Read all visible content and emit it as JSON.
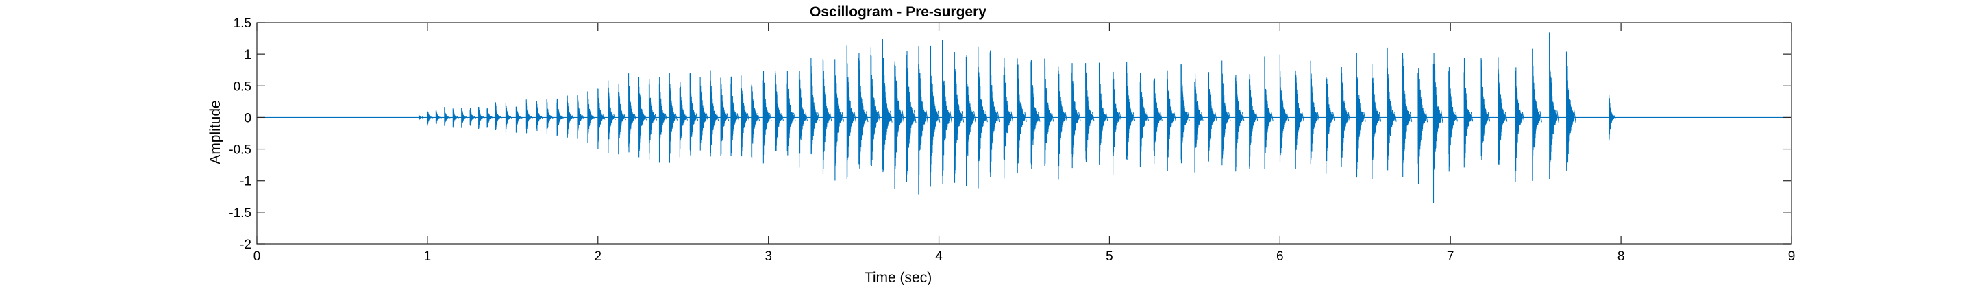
{
  "chart_data": {
    "type": "line",
    "title": "Oscillogram - Pre-surgery",
    "xlabel": "Time (sec)",
    "ylabel": "Amplitude",
    "xlim": [
      0,
      9
    ],
    "ylim": [
      -2,
      1.5
    ],
    "xticks": [
      0,
      1,
      2,
      3,
      4,
      5,
      6,
      7,
      8,
      9
    ],
    "yticks": [
      1.5,
      1,
      0.5,
      0,
      -0.5,
      -1,
      -1.5,
      -2
    ],
    "grid": false,
    "legend": "none",
    "series": [
      {
        "color": "#0072BD",
        "render": "waveform envelope (pulse train)",
        "pulses": [
          {
            "t": 0.95,
            "amp": 0.05
          },
          {
            "t": 1.0,
            "amp": 0.16
          },
          {
            "t": 1.05,
            "amp": 0.16
          },
          {
            "t": 1.1,
            "amp": 0.18
          },
          {
            "t": 1.15,
            "amp": 0.18
          },
          {
            "t": 1.2,
            "amp": 0.2
          },
          {
            "t": 1.25,
            "amp": 0.2
          },
          {
            "t": 1.3,
            "amp": 0.22
          },
          {
            "t": 1.35,
            "amp": 0.24
          },
          {
            "t": 1.4,
            "amp": 0.25
          },
          {
            "t": 1.46,
            "amp": 0.26
          },
          {
            "t": 1.52,
            "amp": 0.28
          },
          {
            "t": 1.58,
            "amp": 0.3
          },
          {
            "t": 1.64,
            "amp": 0.32
          },
          {
            "t": 1.7,
            "amp": 0.34
          },
          {
            "t": 1.76,
            "amp": 0.38
          },
          {
            "t": 1.82,
            "amp": 0.4
          },
          {
            "t": 1.88,
            "amp": 0.42
          },
          {
            "t": 1.94,
            "amp": 0.45
          },
          {
            "t": 2.0,
            "amp": 0.55
          },
          {
            "t": 2.06,
            "amp": 0.62
          },
          {
            "t": 2.12,
            "amp": 0.66
          },
          {
            "t": 2.18,
            "amp": 0.7
          },
          {
            "t": 2.24,
            "amp": 0.72
          },
          {
            "t": 2.3,
            "amp": 0.74
          },
          {
            "t": 2.36,
            "amp": 0.76
          },
          {
            "t": 2.42,
            "amp": 0.76
          },
          {
            "t": 2.48,
            "amp": 0.76
          },
          {
            "t": 2.54,
            "amp": 0.8
          },
          {
            "t": 2.6,
            "amp": 0.8
          },
          {
            "t": 2.66,
            "amp": 0.82
          },
          {
            "t": 2.72,
            "amp": 0.82
          },
          {
            "t": 2.78,
            "amp": 0.84
          },
          {
            "t": 2.84,
            "amp": 0.85
          },
          {
            "t": 2.9,
            "amp": 0.85
          },
          {
            "t": 2.97,
            "amp": 0.86
          },
          {
            "t": 3.04,
            "amp": 0.88
          },
          {
            "t": 3.11,
            "amp": 0.9
          },
          {
            "t": 3.18,
            "amp": 0.92
          },
          {
            "t": 3.25,
            "amp": 0.96
          },
          {
            "t": 3.32,
            "amp": 1.02
          },
          {
            "t": 3.39,
            "amp": 1.08
          },
          {
            "t": 3.46,
            "amp": 1.15
          },
          {
            "t": 3.53,
            "amp": 1.2
          },
          {
            "t": 3.6,
            "amp": 1.25
          },
          {
            "t": 3.67,
            "amp": 1.3
          },
          {
            "t": 3.74,
            "amp": 1.35
          },
          {
            "t": 3.81,
            "amp": 1.38
          },
          {
            "t": 3.88,
            "amp": 1.35
          },
          {
            "t": 3.95,
            "amp": 1.3
          },
          {
            "t": 4.02,
            "amp": 1.28
          },
          {
            "t": 4.09,
            "amp": 1.26
          },
          {
            "t": 4.16,
            "amp": 1.25
          },
          {
            "t": 4.23,
            "amp": 1.22
          },
          {
            "t": 4.3,
            "amp": 1.2
          },
          {
            "t": 4.38,
            "amp": 1.18
          },
          {
            "t": 4.46,
            "amp": 1.15
          },
          {
            "t": 4.54,
            "amp": 1.12
          },
          {
            "t": 4.62,
            "amp": 1.08
          },
          {
            "t": 4.7,
            "amp": 1.05
          },
          {
            "t": 4.78,
            "amp": 1.0
          },
          {
            "t": 4.86,
            "amp": 1.0
          },
          {
            "t": 4.94,
            "amp": 0.98
          },
          {
            "t": 5.02,
            "amp": 0.98
          },
          {
            "t": 5.1,
            "amp": 0.98
          },
          {
            "t": 5.18,
            "amp": 0.98
          },
          {
            "t": 5.26,
            "amp": 0.96
          },
          {
            "t": 5.34,
            "amp": 0.96
          },
          {
            "t": 5.42,
            "amp": 0.98
          },
          {
            "t": 5.5,
            "amp": 0.98
          },
          {
            "t": 5.58,
            "amp": 0.98
          },
          {
            "t": 5.66,
            "amp": 0.98
          },
          {
            "t": 5.74,
            "amp": 0.98
          },
          {
            "t": 5.82,
            "amp": 0.98
          },
          {
            "t": 5.91,
            "amp": 0.98
          },
          {
            "t": 6.0,
            "amp": 1.0
          },
          {
            "t": 6.09,
            "amp": 1.0
          },
          {
            "t": 6.18,
            "amp": 1.02
          },
          {
            "t": 6.27,
            "amp": 1.02
          },
          {
            "t": 6.36,
            "amp": 1.05
          },
          {
            "t": 6.45,
            "amp": 1.08
          },
          {
            "t": 6.54,
            "amp": 1.1
          },
          {
            "t": 6.63,
            "amp": 1.12
          },
          {
            "t": 6.72,
            "amp": 1.15
          },
          {
            "t": 6.81,
            "amp": 1.25
          },
          {
            "t": 6.9,
            "amp": 1.5
          },
          {
            "t": 6.99,
            "amp": 1.05
          },
          {
            "t": 7.08,
            "amp": 1.05
          },
          {
            "t": 7.18,
            "amp": 1.05
          },
          {
            "t": 7.28,
            "amp": 1.1
          },
          {
            "t": 7.38,
            "amp": 1.1
          },
          {
            "t": 7.48,
            "amp": 1.25
          },
          {
            "t": 7.58,
            "amp": 1.35
          },
          {
            "t": 7.68,
            "amp": 1.4
          },
          {
            "t": 7.93,
            "amp": 0.42
          }
        ]
      }
    ]
  }
}
